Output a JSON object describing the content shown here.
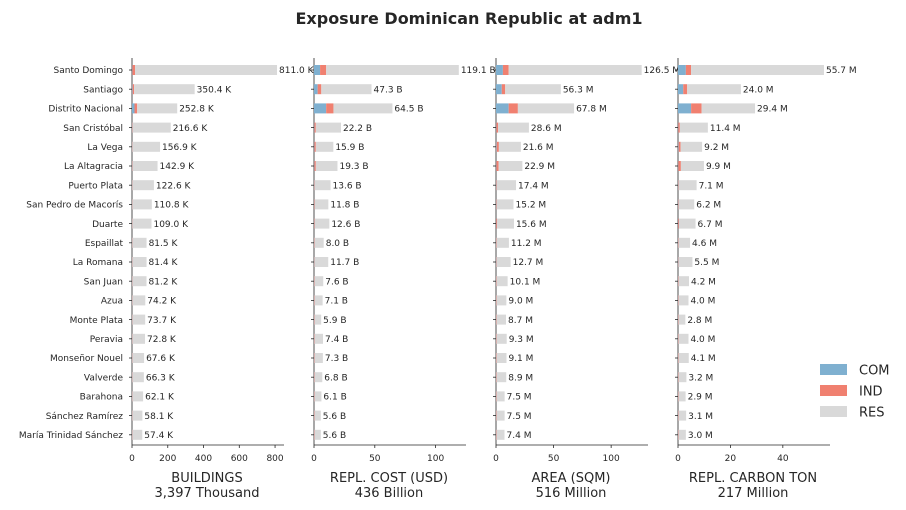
{
  "title": "Exposure Dominican Republic at adm1",
  "colors": {
    "COM": "#7fb0d0",
    "IND": "#f08070",
    "RES": "#d9d9d9"
  },
  "legend": [
    "COM",
    "IND",
    "RES"
  ],
  "chart_data": [
    {
      "type": "bar",
      "orientation": "horizontal",
      "stacked": true,
      "xlabel": "BUILDINGS",
      "subtitle": "3,397 Thousand",
      "xlim": [
        0,
        850
      ],
      "xticks": [
        "0",
        "200",
        "400",
        "600",
        "800"
      ],
      "categories": [
        "Santo Domingo",
        "Santiago",
        "Distrito Nacional",
        "San Cristóbal",
        "La Vega",
        "La Altagracia",
        "Puerto Plata",
        "San Pedro de Macorís",
        "Duarte",
        "Espaillat",
        "La Romana",
        "San Juan",
        "Azua",
        "Monte Plata",
        "Peravia",
        "Monseñor Nouel",
        "Valverde",
        "Barahona",
        "Sánchez Ramírez",
        "María Trinidad Sánchez"
      ],
      "series": [
        {
          "name": "COM",
          "values": [
            2,
            3,
            14,
            1,
            1,
            1,
            1,
            1,
            1,
            1,
            1,
            1,
            1,
            1,
            1,
            1,
            1,
            1,
            1,
            1
          ]
        },
        {
          "name": "IND",
          "values": [
            15,
            9,
            15,
            2,
            1,
            2,
            1,
            1,
            1,
            1,
            1,
            1,
            1,
            1,
            1,
            1,
            1,
            1,
            1,
            1
          ]
        },
        {
          "name": "RES",
          "values": [
            794,
            338.4,
            223.8,
            213.6,
            154.9,
            139.9,
            120.6,
            108.8,
            107,
            79.5,
            79.4,
            79.2,
            72.2,
            71.7,
            70.8,
            65.6,
            64.3,
            60.1,
            56.1,
            55.4
          ]
        }
      ],
      "labels": [
        "811.0 K",
        "350.4 K",
        "252.8 K",
        "216.6 K",
        "156.9 K",
        "142.9 K",
        "122.6 K",
        "110.8 K",
        "109.0 K",
        "81.5 K",
        "81.4 K",
        "81.2 K",
        "74.2 K",
        "73.7 K",
        "72.8 K",
        "67.6 K",
        "66.3 K",
        "62.1 K",
        "58.1 K",
        "57.4 K"
      ]
    },
    {
      "type": "bar",
      "orientation": "horizontal",
      "stacked": true,
      "xlabel": "REPL. COST (USD)",
      "subtitle": "436 Billion",
      "xlim": [
        0,
        125
      ],
      "xticks": [
        "0",
        "50",
        "100"
      ],
      "categories": [
        "Santo Domingo",
        "Santiago",
        "Distrito Nacional",
        "San Cristóbal",
        "La Vega",
        "La Altagracia",
        "Puerto Plata",
        "San Pedro de Macorís",
        "Duarte",
        "Espaillat",
        "La Romana",
        "San Juan",
        "Azua",
        "Monte Plata",
        "Peravia",
        "Monseñor Nouel",
        "Valverde",
        "Barahona",
        "Sánchez Ramírez",
        "María Trinidad Sánchez"
      ],
      "series": [
        {
          "name": "COM",
          "values": [
            5,
            3,
            10,
            0.3,
            0.3,
            0.3,
            0.2,
            0.2,
            0.2,
            0.1,
            0.2,
            0.1,
            0.1,
            0.1,
            0.1,
            0.1,
            0.1,
            0.1,
            0.1,
            0.1
          ]
        },
        {
          "name": "IND",
          "values": [
            5,
            3,
            6,
            1.2,
            1.2,
            1.2,
            0.4,
            0.5,
            0.5,
            0.3,
            0.3,
            0.3,
            0.3,
            0.3,
            0.3,
            0.3,
            0.3,
            0.3,
            0.3,
            0.3
          ]
        },
        {
          "name": "RES",
          "values": [
            109.1,
            41.3,
            48.5,
            20.7,
            14.4,
            17.8,
            13,
            11.1,
            11.9,
            7.6,
            11.2,
            7.2,
            6.7,
            5.5,
            7,
            6.9,
            6.4,
            5.7,
            5.2,
            5.2
          ]
        }
      ],
      "labels": [
        "119.1 B",
        "47.3 B",
        "64.5 B",
        "22.2 B",
        "15.9 B",
        "19.3 B",
        "13.6 B",
        "11.8 B",
        "12.6 B",
        "8.0 B",
        "11.7 B",
        "7.6 B",
        "7.1 B",
        "5.9 B",
        "7.4 B",
        "7.3 B",
        "6.8 B",
        "6.1 B",
        "5.6 B",
        "5.6 B"
      ]
    },
    {
      "type": "bar",
      "orientation": "horizontal",
      "stacked": true,
      "xlabel": "AREA (SQM)",
      "subtitle": "516 Million",
      "xlim": [
        0,
        132
      ],
      "xticks": [
        "0",
        "50",
        "100"
      ],
      "categories": [
        "Santo Domingo",
        "Santiago",
        "Distrito Nacional",
        "San Cristóbal",
        "La Vega",
        "La Altagracia",
        "Puerto Plata",
        "San Pedro de Macorís",
        "Duarte",
        "Espaillat",
        "La Romana",
        "San Juan",
        "Azua",
        "Monte Plata",
        "Peravia",
        "Monseñor Nouel",
        "Valverde",
        "Barahona",
        "Sánchez Ramírez",
        "María Trinidad Sánchez"
      ],
      "series": [
        {
          "name": "COM",
          "values": [
            6,
            5,
            11,
            0.3,
            0.5,
            0.3,
            0.2,
            0.2,
            0.2,
            0.1,
            0.2,
            0.1,
            0.1,
            0.1,
            0.1,
            0.1,
            0.1,
            0.1,
            0.1,
            0.1
          ]
        },
        {
          "name": "IND",
          "values": [
            5,
            3,
            8,
            1.5,
            2,
            2,
            0.5,
            0.5,
            0.8,
            0.4,
            0.4,
            0.4,
            0.4,
            0.4,
            0.4,
            0.4,
            0.4,
            0.4,
            0.4,
            0.4
          ]
        },
        {
          "name": "RES",
          "values": [
            115.5,
            48.3,
            48.8,
            26.8,
            19.1,
            20.6,
            16.7,
            14.5,
            14.6,
            10.7,
            12.1,
            9.6,
            8.5,
            8.2,
            8.8,
            8.6,
            8.4,
            7,
            7,
            6.9
          ]
        }
      ],
      "labels": [
        "126.5 M",
        "56.3 M",
        "67.8 M",
        "28.6 M",
        "21.6 M",
        "22.9 M",
        "17.4 M",
        "15.2 M",
        "15.6 M",
        "11.2 M",
        "12.7 M",
        "10.1 M",
        "9.0 M",
        "8.7 M",
        "9.3 M",
        "9.1 M",
        "8.9 M",
        "7.5 M",
        "7.5 M",
        "7.4 M"
      ]
    },
    {
      "type": "bar",
      "orientation": "horizontal",
      "stacked": true,
      "xlabel": "REPL. CARBON TON",
      "subtitle": "217 Million",
      "xlim": [
        0,
        58
      ],
      "xticks": [
        "0",
        "20",
        "40"
      ],
      "categories": [
        "Santo Domingo",
        "Santiago",
        "Distrito Nacional",
        "San Cristóbal",
        "La Vega",
        "La Altagracia",
        "Puerto Plata",
        "San Pedro de Macorís",
        "Duarte",
        "Espaillat",
        "La Romana",
        "San Juan",
        "Azua",
        "Monte Plata",
        "Peravia",
        "Monseñor Nouel",
        "Valverde",
        "Barahona",
        "Sánchez Ramírez",
        "María Trinidad Sánchez"
      ],
      "series": [
        {
          "name": "COM",
          "values": [
            3,
            2,
            5,
            0.1,
            0.2,
            0.1,
            0.1,
            0.1,
            0.1,
            0.05,
            0.1,
            0.05,
            0.05,
            0.05,
            0.05,
            0.05,
            0.05,
            0.05,
            0.05,
            0.05
          ]
        },
        {
          "name": "IND",
          "values": [
            2,
            1.5,
            4,
            0.6,
            0.8,
            1,
            0.2,
            0.2,
            0.3,
            0.15,
            0.15,
            0.15,
            0.15,
            0.15,
            0.15,
            0.15,
            0.15,
            0.15,
            0.15,
            0.15
          ]
        },
        {
          "name": "RES",
          "values": [
            50.7,
            20.5,
            20.4,
            10.7,
            8.2,
            8.8,
            6.8,
            5.9,
            6.3,
            4.4,
            5.25,
            4,
            3.8,
            2.6,
            3.8,
            3.9,
            3,
            2.7,
            2.9,
            2.8
          ]
        }
      ],
      "labels": [
        "55.7 M",
        "24.0 M",
        "29.4 M",
        "11.4 M",
        "9.2 M",
        "9.9 M",
        "7.1 M",
        "6.2 M",
        "6.7 M",
        "4.6 M",
        "5.5 M",
        "4.2 M",
        "4.0 M",
        "2.8 M",
        "4.0 M",
        "4.1 M",
        "3.2 M",
        "2.9 M",
        "3.1 M",
        "3.0 M"
      ]
    }
  ]
}
